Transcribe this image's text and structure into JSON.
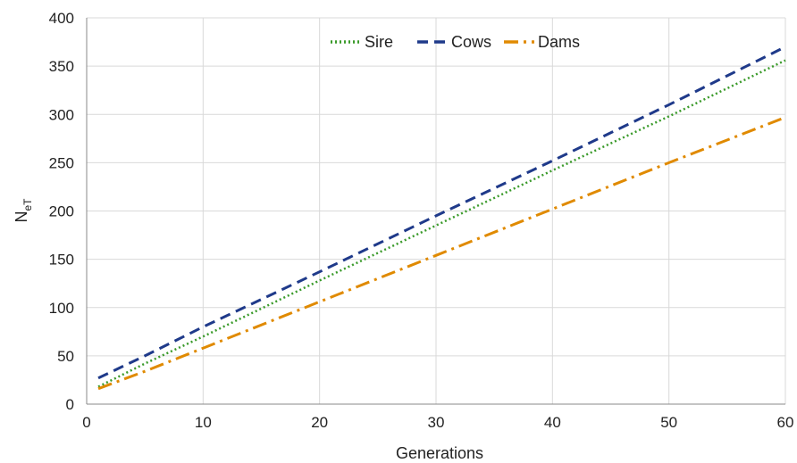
{
  "chart_data": {
    "type": "line",
    "title": "",
    "xlabel": "Generations",
    "ylabel_main": "N",
    "ylabel_sub": "eT",
    "xlim": [
      0,
      60
    ],
    "ylim": [
      0,
      400
    ],
    "xticks": [
      0,
      10,
      20,
      30,
      40,
      50,
      60
    ],
    "yticks": [
      0,
      50,
      100,
      150,
      200,
      250,
      300,
      350,
      400
    ],
    "grid": true,
    "legend_position": "top-center",
    "series": [
      {
        "name": "Sire",
        "color": "#3a9a2a",
        "style": "dotted",
        "x": [
          1,
          5,
          10,
          20,
          30,
          40,
          50,
          60
        ],
        "y": [
          18,
          42,
          70,
          128,
          185,
          242,
          298,
          356
        ]
      },
      {
        "name": "Cows",
        "color": "#1f3a8a",
        "style": "dashed",
        "x": [
          1,
          5,
          10,
          20,
          30,
          40,
          50,
          60
        ],
        "y": [
          27,
          50,
          80,
          137,
          195,
          252,
          310,
          370
        ]
      },
      {
        "name": "Dams",
        "color": "#e08a00",
        "style": "dash-dot",
        "x": [
          1,
          5,
          10,
          20,
          30,
          40,
          50,
          60
        ],
        "y": [
          16,
          34,
          58,
          106,
          154,
          202,
          250,
          297
        ]
      }
    ]
  }
}
